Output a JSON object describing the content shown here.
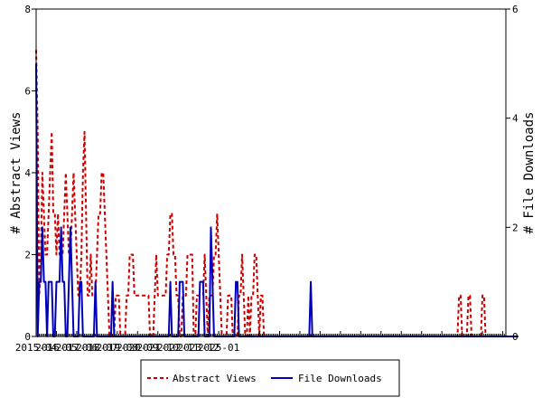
{
  "chart_data": {
    "type": "line",
    "title": "",
    "xlabel": "",
    "ylabel_left": "# Abstract Views",
    "ylabel_right": "# File Downloads",
    "ylim_left": [
      0,
      8
    ],
    "ylim_right": [
      0,
      6
    ],
    "yticks_left": [
      "0",
      "2",
      "4",
      "6",
      "8"
    ],
    "yticks_right": [
      "0",
      "2",
      "4",
      "6"
    ],
    "x_start": "2015-04",
    "x_end": "2025-11",
    "x_tick_labels": [
      "2015-04",
      "2016-05",
      "2017-06",
      "2018-07",
      "2019-08",
      "2020-09",
      "2021-10",
      "2022-11",
      "2023-12",
      "2025-01"
    ],
    "legend_position": "bottom",
    "series": [
      {
        "name": "Abstract Views",
        "axis": "left",
        "color": "#cc0000",
        "dash": "dashed",
        "values": [
          7,
          5,
          1,
          2,
          4,
          3,
          2,
          2,
          3,
          4,
          5,
          3,
          3,
          2,
          3,
          2,
          2,
          2,
          3,
          4,
          3,
          2,
          2,
          3,
          4,
          3,
          2,
          1,
          1,
          2,
          4,
          5,
          3,
          1,
          1,
          2,
          1,
          1,
          1,
          2,
          3,
          3,
          4,
          4,
          3,
          2,
          1,
          0,
          0,
          0,
          0,
          1,
          1,
          1,
          0,
          0,
          0,
          0,
          1,
          1,
          2,
          2,
          2,
          1,
          1,
          1,
          1,
          1,
          1,
          1,
          1,
          1,
          1,
          0,
          0,
          0,
          1,
          2,
          1,
          1,
          1,
          1,
          1,
          1,
          2,
          2,
          3,
          3,
          2,
          2,
          1,
          1,
          0,
          0,
          1,
          1,
          1,
          2,
          2,
          2,
          2,
          0,
          0,
          1,
          1,
          1,
          1,
          1,
          2,
          1,
          0,
          1,
          1,
          1,
          2,
          2,
          3,
          2,
          1,
          0,
          0,
          0,
          0,
          1,
          1,
          1,
          0,
          0,
          0,
          0,
          1,
          1,
          2,
          1,
          0,
          0,
          1,
          0,
          1,
          1,
          2,
          2,
          1,
          0,
          1,
          1,
          0,
          0,
          0,
          0,
          0,
          0,
          0,
          0,
          0,
          0,
          0,
          0,
          0,
          0,
          0,
          0,
          0,
          0,
          0,
          0,
          0,
          0,
          0,
          0,
          0,
          0,
          0,
          0,
          0,
          0,
          0,
          0,
          0,
          0,
          0,
          0,
          0,
          0,
          0,
          0,
          0,
          0,
          0,
          0,
          0,
          0,
          0,
          0,
          0,
          0,
          0,
          0,
          0,
          0,
          0,
          0,
          0,
          0,
          0,
          0,
          0,
          0,
          0,
          0,
          0,
          0,
          0,
          0,
          0,
          0,
          0,
          0,
          0,
          0,
          0,
          0,
          0,
          0,
          0,
          0,
          0,
          0,
          0,
          0,
          0,
          0,
          0,
          0,
          0,
          0,
          0,
          0,
          0,
          0,
          0,
          0,
          0,
          0,
          0,
          0,
          0,
          0,
          0,
          0,
          0,
          0,
          0,
          0,
          0,
          0,
          0,
          0,
          0,
          0,
          0,
          0,
          0,
          0,
          0,
          0,
          0,
          0,
          0,
          0,
          0,
          1,
          1,
          0,
          0,
          0,
          0,
          1,
          1,
          0,
          0,
          0,
          0,
          0,
          0,
          0,
          1,
          1,
          0,
          0,
          0,
          0,
          0,
          0,
          0,
          0,
          0,
          0,
          0,
          0,
          0,
          0
        ]
      },
      {
        "name": "File Downloads",
        "axis": "right",
        "color": "#0000bb",
        "dash": "solid",
        "values": [
          5,
          0,
          1,
          1,
          2,
          1,
          1,
          0,
          1,
          1,
          1,
          0,
          0,
          1,
          1,
          1,
          2,
          1,
          1,
          0,
          0,
          1,
          2,
          1,
          0,
          0,
          0,
          0,
          1,
          1,
          0,
          0,
          0,
          0,
          0,
          0,
          0,
          0,
          1,
          0,
          0,
          0,
          0,
          0,
          0,
          0,
          0,
          0,
          0,
          1,
          0,
          0,
          0,
          0,
          0,
          0,
          0,
          0,
          0,
          0,
          0,
          0,
          0,
          0,
          0,
          0,
          0,
          0,
          0,
          0,
          0,
          0,
          0,
          0,
          0,
          0,
          0,
          0,
          0,
          0,
          0,
          0,
          0,
          0,
          0,
          0,
          1,
          0,
          0,
          0,
          0,
          0,
          1,
          1,
          1,
          0,
          0,
          0,
          0,
          0,
          0,
          0,
          0,
          0,
          0,
          1,
          1,
          1,
          0,
          0,
          0,
          0,
          2,
          1,
          0,
          0,
          0,
          0,
          0,
          0,
          0,
          0,
          0,
          0,
          0,
          0,
          0,
          0,
          1,
          1,
          0,
          0,
          0,
          0,
          0,
          0,
          0,
          0,
          0,
          0,
          0,
          0,
          0,
          0,
          0,
          0,
          0,
          0,
          0,
          0,
          0,
          0,
          0,
          0,
          0,
          0,
          0,
          0,
          0,
          0,
          0,
          0,
          0,
          0,
          0,
          0,
          0,
          0,
          0,
          0,
          0,
          0,
          0,
          0,
          0,
          0,
          1,
          0,
          0,
          0,
          0,
          0,
          0,
          0,
          0,
          0,
          0,
          0,
          0,
          0,
          0,
          0,
          0,
          0,
          0,
          0,
          0,
          0,
          0,
          0,
          0,
          0,
          0,
          0,
          0,
          0,
          0,
          0,
          0,
          0,
          0,
          0,
          0,
          0,
          0,
          0,
          0,
          0,
          0,
          0,
          0,
          0,
          0,
          0,
          0,
          0,
          0,
          0,
          0,
          0,
          0,
          0,
          0,
          0,
          0,
          0,
          0,
          0,
          0,
          0,
          0,
          0,
          0,
          0,
          0,
          0,
          0,
          0,
          0,
          0,
          0,
          0,
          0,
          0,
          0,
          0,
          0,
          0,
          0,
          0,
          0,
          0,
          0,
          0,
          0,
          0,
          0,
          0,
          0,
          0,
          0,
          0,
          0,
          0,
          0,
          0,
          0,
          0,
          0,
          0,
          0,
          0,
          0,
          0,
          0,
          0,
          0,
          0,
          0,
          0,
          0,
          0,
          0,
          0,
          0,
          0,
          0,
          0,
          0,
          0,
          0,
          0,
          0,
          0,
          0,
          0,
          0,
          0,
          0,
          0
        ]
      }
    ]
  }
}
